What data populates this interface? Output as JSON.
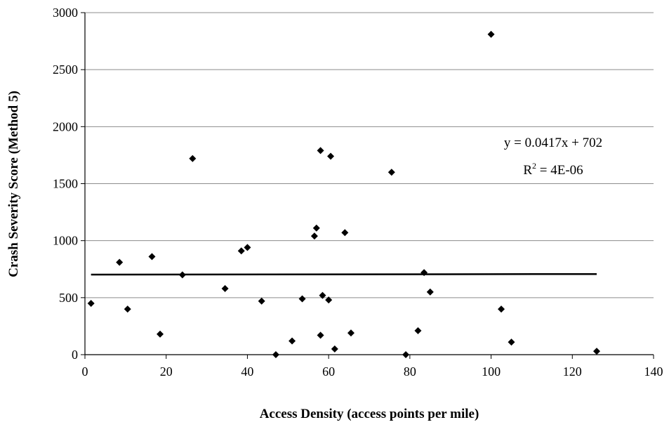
{
  "chart_data": {
    "type": "scatter",
    "xlabel": "Access Density (access points per mile)",
    "ylabel": "Crash Severity Score (Method 5)",
    "xlim": [
      0,
      140
    ],
    "ylim": [
      0,
      3000
    ],
    "x_ticks": [
      "0",
      "20",
      "40",
      "60",
      "80",
      "100",
      "120",
      "140"
    ],
    "y_ticks": [
      "0",
      "500",
      "1000",
      "1500",
      "2000",
      "2500",
      "3000"
    ],
    "x_tick_values": [
      0,
      20,
      40,
      60,
      80,
      100,
      120,
      140
    ],
    "y_tick_values": [
      0,
      500,
      1000,
      1500,
      2000,
      2500,
      3000
    ],
    "grid": "horizontal",
    "marker": "diamond",
    "marker_color": "#000000",
    "points": [
      {
        "x": 1.5,
        "y": 450
      },
      {
        "x": 8.5,
        "y": 810
      },
      {
        "x": 10.5,
        "y": 400
      },
      {
        "x": 16.5,
        "y": 860
      },
      {
        "x": 18.5,
        "y": 180
      },
      {
        "x": 24,
        "y": 700
      },
      {
        "x": 26.5,
        "y": 1720
      },
      {
        "x": 34.5,
        "y": 580
      },
      {
        "x": 38.5,
        "y": 910
      },
      {
        "x": 40,
        "y": 940
      },
      {
        "x": 43.5,
        "y": 470
      },
      {
        "x": 47,
        "y": 0
      },
      {
        "x": 51,
        "y": 120
      },
      {
        "x": 53.5,
        "y": 490
      },
      {
        "x": 56.5,
        "y": 1040
      },
      {
        "x": 57,
        "y": 1110
      },
      {
        "x": 58,
        "y": 1790
      },
      {
        "x": 58,
        "y": 170
      },
      {
        "x": 58.5,
        "y": 520
      },
      {
        "x": 60,
        "y": 480
      },
      {
        "x": 60.5,
        "y": 1740
      },
      {
        "x": 61.5,
        "y": 50
      },
      {
        "x": 64,
        "y": 1070
      },
      {
        "x": 65.5,
        "y": 190
      },
      {
        "x": 75.5,
        "y": 1600
      },
      {
        "x": 79,
        "y": 0
      },
      {
        "x": 82,
        "y": 210
      },
      {
        "x": 83.5,
        "y": 720
      },
      {
        "x": 85,
        "y": 550
      },
      {
        "x": 100,
        "y": 2810
      },
      {
        "x": 102.5,
        "y": 400
      },
      {
        "x": 105,
        "y": 110
      },
      {
        "x": 126,
        "y": 30
      }
    ],
    "trendline": {
      "slope": 0.0417,
      "intercept": 702,
      "x_range": [
        1.5,
        126
      ],
      "equation": "y = 0.0417x + 702",
      "r2_base": "R",
      "r2_sup": "2",
      "r2_value": " = 4E-06"
    }
  }
}
